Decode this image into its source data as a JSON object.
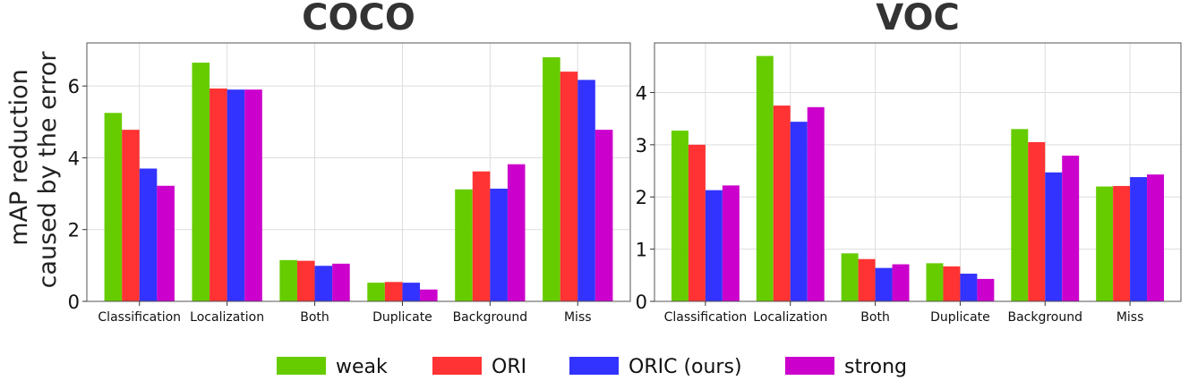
{
  "chart_data": [
    {
      "type": "bar",
      "title": "COCO",
      "ylabel_line1": "mAP reduction",
      "ylabel_line2": "caused by the error",
      "xlabel": "",
      "categories": [
        "Classification",
        "Localization",
        "Both",
        "Duplicate",
        "Background",
        "Miss"
      ],
      "ylim": [
        0,
        7.2
      ],
      "yticks": [
        0,
        2,
        4,
        6
      ],
      "grid": true,
      "series": [
        {
          "name": "weak",
          "color": "#66cc00",
          "values": [
            5.25,
            6.65,
            1.15,
            0.52,
            3.12,
            6.8
          ]
        },
        {
          "name": "ORI",
          "color": "#ff3333",
          "values": [
            4.78,
            5.93,
            1.13,
            0.54,
            3.62,
            6.4
          ]
        },
        {
          "name": "ORIC (ours)",
          "color": "#3333ff",
          "values": [
            3.7,
            5.9,
            0.99,
            0.52,
            3.14,
            6.17
          ]
        },
        {
          "name": "strong",
          "color": "#cc00cc",
          "values": [
            3.22,
            5.9,
            1.05,
            0.33,
            3.82,
            4.78
          ]
        }
      ]
    },
    {
      "type": "bar",
      "title": "VOC",
      "xlabel": "",
      "ylabel": "",
      "categories": [
        "Classification",
        "Localization",
        "Both",
        "Duplicate",
        "Background",
        "Miss"
      ],
      "ylim": [
        0,
        4.95
      ],
      "yticks": [
        0,
        1,
        2,
        3,
        4
      ],
      "grid": true,
      "series": [
        {
          "name": "weak",
          "color": "#66cc00",
          "values": [
            3.27,
            4.7,
            0.92,
            0.73,
            3.3,
            2.2
          ]
        },
        {
          "name": "ORI",
          "color": "#ff3333",
          "values": [
            3.0,
            3.75,
            0.81,
            0.67,
            3.05,
            2.21
          ]
        },
        {
          "name": "ORIC (ours)",
          "color": "#3333ff",
          "values": [
            2.13,
            3.44,
            0.64,
            0.53,
            2.47,
            2.38
          ]
        },
        {
          "name": "strong",
          "color": "#cc00cc",
          "values": [
            2.22,
            3.72,
            0.71,
            0.43,
            2.79,
            2.43
          ]
        }
      ]
    }
  ],
  "legend": {
    "placement": "bottom-center",
    "items": [
      "weak",
      "ORI",
      "ORIC (ours)",
      "strong"
    ]
  }
}
